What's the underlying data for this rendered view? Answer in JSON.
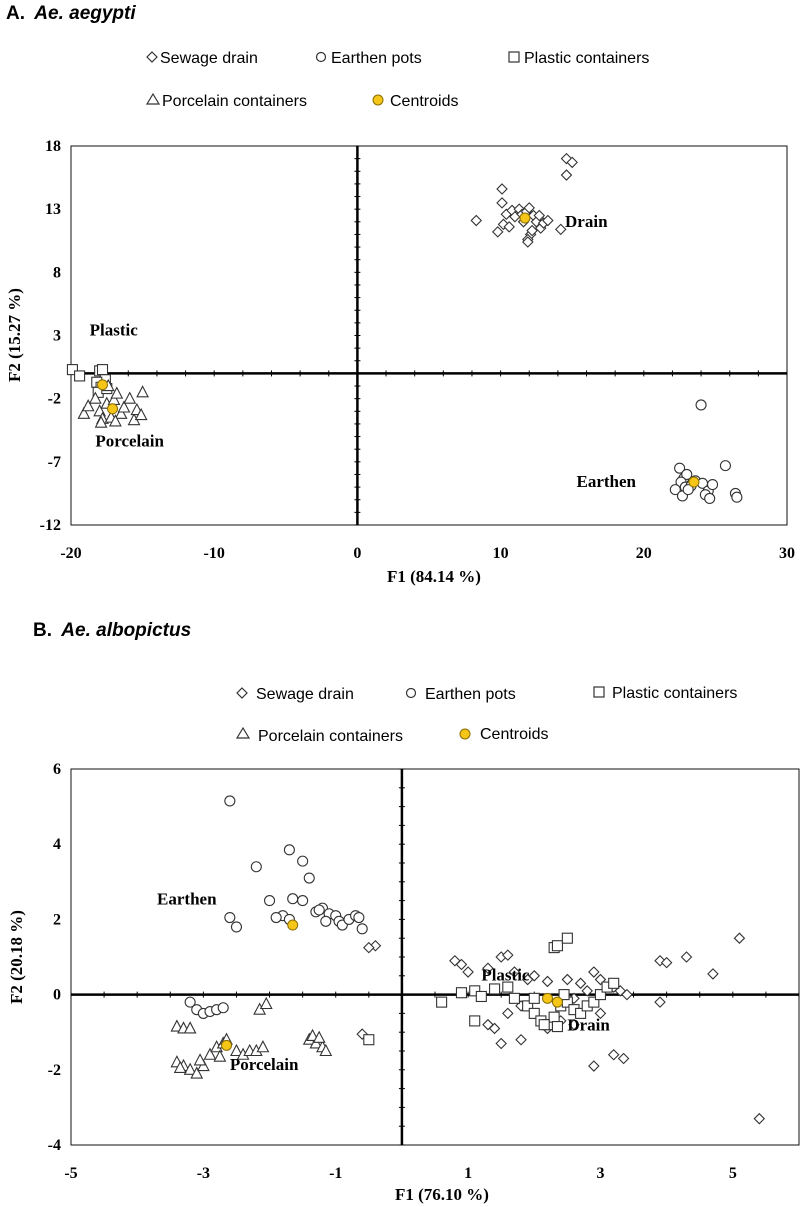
{
  "colors": {
    "marker_stroke": "#333333",
    "centroid_fill": "#F5C518",
    "centroid_stroke": "#8a6d00",
    "axis": "#000000"
  },
  "chart_data": [
    {
      "type": "scatter",
      "panel_letter": "A.",
      "species": "Ae. aegypti",
      "xlabel": "F1 (84.14 %)",
      "ylabel": "F2 (15.27 %)",
      "xlim": [
        -20,
        30
      ],
      "ylim": [
        -12,
        18
      ],
      "xticks": [
        -20,
        -10,
        0,
        10,
        20,
        30
      ],
      "xtick_labels": [
        "-20",
        "-10",
        "0",
        "10",
        "20",
        "30"
      ],
      "yticks": [
        -12,
        -7,
        -2,
        3,
        8,
        13,
        18
      ],
      "ytick_labels": [
        "-12",
        "-7",
        "-2",
        "3",
        "8",
        "13",
        "18"
      ],
      "legend": [
        {
          "marker": "diamond",
          "label": "Sewage drain"
        },
        {
          "marker": "circle",
          "label": "Earthen pots"
        },
        {
          "marker": "square",
          "label": "Plastic containers"
        },
        {
          "marker": "triangle",
          "label": "Porcelain containers"
        },
        {
          "marker": "centroid",
          "label": "Centroids"
        }
      ],
      "annotations": [
        {
          "text": "Drain",
          "x": 14.5,
          "y": 11.6
        },
        {
          "text": "Plastic",
          "x": -18.7,
          "y": 3.0
        },
        {
          "text": "Porcelain",
          "x": -18.3,
          "y": -5.8
        },
        {
          "text": "Earthen",
          "x": 15.3,
          "y": -9.0
        }
      ],
      "series": [
        {
          "name": "Sewage drain",
          "marker": "diamond",
          "points": [
            [
              14.6,
              17.0
            ],
            [
              15.0,
              16.7
            ],
            [
              14.6,
              15.7
            ],
            [
              8.3,
              12.1
            ],
            [
              9.8,
              11.2
            ],
            [
              10.2,
              11.8
            ],
            [
              10.6,
              11.6
            ],
            [
              10.1,
              13.5
            ],
            [
              10.4,
              12.6
            ],
            [
              10.8,
              12.9
            ],
            [
              11.0,
              12.4
            ],
            [
              11.3,
              13.0
            ],
            [
              11.5,
              12.6
            ],
            [
              11.8,
              12.8
            ],
            [
              12.0,
              13.1
            ],
            [
              12.3,
              12.5
            ],
            [
              12.5,
              12.0
            ],
            [
              12.8,
              11.5
            ],
            [
              12.1,
              11.0
            ],
            [
              11.9,
              10.6
            ],
            [
              12.2,
              11.3
            ],
            [
              12.7,
              12.5
            ],
            [
              13.0,
              11.9
            ],
            [
              13.3,
              12.1
            ],
            [
              11.6,
              12.0
            ],
            [
              10.1,
              14.6
            ],
            [
              14.2,
              11.4
            ],
            [
              11.9,
              10.4
            ]
          ]
        },
        {
          "name": "Earthen pots",
          "marker": "circle",
          "points": [
            [
              24.0,
              -2.5
            ],
            [
              22.5,
              -7.5
            ],
            [
              22.8,
              -8.3
            ],
            [
              23.0,
              -8.0
            ],
            [
              22.6,
              -8.6
            ],
            [
              22.2,
              -9.2
            ],
            [
              22.9,
              -9.0
            ],
            [
              23.3,
              -8.9
            ],
            [
              23.6,
              -8.5
            ],
            [
              24.1,
              -8.7
            ],
            [
              24.5,
              -9.3
            ],
            [
              24.3,
              -9.6
            ],
            [
              24.8,
              -8.8
            ],
            [
              24.6,
              -9.9
            ],
            [
              25.7,
              -7.3
            ],
            [
              26.4,
              -9.5
            ],
            [
              26.5,
              -9.8
            ],
            [
              22.7,
              -9.7
            ],
            [
              23.1,
              -9.2
            ]
          ]
        },
        {
          "name": "Plastic containers",
          "marker": "square",
          "points": [
            [
              -19.9,
              0.3
            ],
            [
              -19.4,
              -0.2
            ],
            [
              -18.0,
              0.2
            ],
            [
              -17.8,
              0.3
            ],
            [
              -17.6,
              -0.5
            ],
            [
              -18.2,
              -0.7
            ],
            [
              -17.9,
              -1.1
            ],
            [
              -18.1,
              -1.5
            ],
            [
              -17.5,
              -1.2
            ]
          ]
        },
        {
          "name": "Porcelain containers",
          "marker": "triangle",
          "points": [
            [
              -19.1,
              -3.2
            ],
            [
              -18.8,
              -2.6
            ],
            [
              -18.3,
              -2.0
            ],
            [
              -18.0,
              -3.0
            ],
            [
              -17.8,
              -3.6
            ],
            [
              -17.5,
              -2.4
            ],
            [
              -17.2,
              -3.5
            ],
            [
              -17.0,
              -2.1
            ],
            [
              -16.8,
              -1.6
            ],
            [
              -16.5,
              -3.2
            ],
            [
              -16.3,
              -2.7
            ],
            [
              -15.9,
              -2.0
            ],
            [
              -15.6,
              -3.7
            ],
            [
              -15.4,
              -2.9
            ],
            [
              -15.1,
              -3.3
            ],
            [
              -15.0,
              -1.5
            ],
            [
              -17.9,
              -3.9
            ],
            [
              -17.4,
              -1.0
            ],
            [
              -16.9,
              -3.8
            ]
          ]
        },
        {
          "name": "Centroids",
          "marker": "centroid",
          "points": [
            [
              11.7,
              12.3
            ],
            [
              23.5,
              -8.6
            ],
            [
              -17.8,
              -0.9
            ],
            [
              -17.1,
              -2.8
            ]
          ]
        }
      ]
    },
    {
      "type": "scatter",
      "panel_letter": "B.",
      "species": "Ae. albopictus",
      "xlabel": "F1 (76.10 %)",
      "ylabel": "F2 (20.18 %)",
      "xlim": [
        -5,
        6
      ],
      "ylim": [
        -4,
        6
      ],
      "xticks": [
        -5,
        -3,
        -1,
        1,
        3,
        5
      ],
      "xtick_labels": [
        "-5",
        "-3",
        "-1",
        "1",
        "3",
        "5"
      ],
      "yticks": [
        -4,
        -2,
        0,
        2,
        4,
        6
      ],
      "ytick_labels": [
        "-4",
        "-2",
        "0",
        "2",
        "4",
        "6"
      ],
      "legend": [
        {
          "marker": "diamond",
          "label": "Sewage drain"
        },
        {
          "marker": "circle",
          "label": "Earthen pots"
        },
        {
          "marker": "square",
          "label": "Plastic containers"
        },
        {
          "marker": "triangle",
          "label": "Porcelain containers"
        },
        {
          "marker": "centroid",
          "label": "Centroids"
        }
      ],
      "annotations": [
        {
          "text": "Earthen",
          "x": -3.7,
          "y": 2.4
        },
        {
          "text": "Plastic",
          "x": 1.2,
          "y": 0.38
        },
        {
          "text": "Drain",
          "x": 2.5,
          "y": -0.95
        },
        {
          "text": "Porcelain",
          "x": -2.6,
          "y": -2.0
        }
      ],
      "series": [
        {
          "name": "Sewage drain",
          "marker": "diamond",
          "points": [
            [
              0.8,
              0.9
            ],
            [
              0.9,
              0.8
            ],
            [
              1.0,
              0.6
            ],
            [
              1.3,
              0.7
            ],
            [
              1.5,
              1.0
            ],
            [
              1.6,
              1.05
            ],
            [
              1.7,
              0.6
            ],
            [
              1.9,
              0.4
            ],
            [
              2.0,
              0.5
            ],
            [
              2.2,
              0.35
            ],
            [
              2.5,
              0.4
            ],
            [
              2.7,
              0.3
            ],
            [
              2.9,
              0.6
            ],
            [
              3.0,
              0.4
            ],
            [
              3.2,
              0.2
            ],
            [
              3.3,
              0.1
            ],
            [
              3.4,
              0.0
            ],
            [
              2.8,
              0.1
            ],
            [
              2.6,
              -0.1
            ],
            [
              1.8,
              -0.3
            ],
            [
              1.6,
              -0.5
            ],
            [
              1.4,
              -0.9
            ],
            [
              1.3,
              -0.8
            ],
            [
              1.5,
              -1.3
            ],
            [
              1.8,
              -1.2
            ],
            [
              2.2,
              -0.9
            ],
            [
              2.4,
              -0.7
            ],
            [
              2.6,
              -0.8
            ],
            [
              3.0,
              -0.5
            ],
            [
              2.9,
              -1.9
            ],
            [
              3.2,
              -1.6
            ],
            [
              3.35,
              -1.7
            ],
            [
              3.9,
              0.9
            ],
            [
              4.0,
              0.85
            ],
            [
              4.3,
              1.0
            ],
            [
              4.7,
              0.55
            ],
            [
              5.1,
              1.5
            ],
            [
              3.9,
              -0.2
            ],
            [
              5.4,
              -3.3
            ],
            [
              -0.4,
              1.3
            ],
            [
              -0.5,
              1.25
            ],
            [
              -0.6,
              -1.05
            ]
          ]
        },
        {
          "name": "Earthen pots",
          "marker": "circle",
          "points": [
            [
              -2.6,
              5.15
            ],
            [
              -2.2,
              3.4
            ],
            [
              -1.7,
              3.85
            ],
            [
              -1.5,
              3.55
            ],
            [
              -1.4,
              3.1
            ],
            [
              -2.0,
              2.5
            ],
            [
              -1.65,
              2.55
            ],
            [
              -1.5,
              2.5
            ],
            [
              -1.8,
              2.1
            ],
            [
              -1.7,
              2.0
            ],
            [
              -1.9,
              2.05
            ],
            [
              -2.5,
              1.8
            ],
            [
              -2.6,
              2.05
            ],
            [
              -1.3,
              2.2
            ],
            [
              -1.2,
              2.3
            ],
            [
              -1.1,
              2.15
            ],
            [
              -1.0,
              2.1
            ],
            [
              -0.95,
              1.95
            ],
            [
              -0.9,
              1.85
            ],
            [
              -0.8,
              2.0
            ],
            [
              -0.7,
              2.1
            ],
            [
              -0.65,
              2.05
            ],
            [
              -0.6,
              1.75
            ],
            [
              -1.15,
              1.95
            ],
            [
              -1.25,
              2.25
            ],
            [
              -3.2,
              -0.2
            ],
            [
              -3.1,
              -0.4
            ],
            [
              -3.0,
              -0.5
            ],
            [
              -2.9,
              -0.45
            ],
            [
              -2.8,
              -0.4
            ],
            [
              -2.7,
              -0.35
            ]
          ]
        },
        {
          "name": "Plastic containers",
          "marker": "square",
          "points": [
            [
              0.6,
              -0.2
            ],
            [
              0.9,
              0.05
            ],
            [
              1.1,
              0.1
            ],
            [
              1.2,
              -0.05
            ],
            [
              1.4,
              0.15
            ],
            [
              1.6,
              0.2
            ],
            [
              1.7,
              -0.1
            ],
            [
              1.9,
              -0.3
            ],
            [
              2.0,
              -0.5
            ],
            [
              2.1,
              -0.7
            ],
            [
              2.2,
              -0.8
            ],
            [
              2.3,
              -0.6
            ],
            [
              2.4,
              -0.3
            ],
            [
              2.5,
              -0.2
            ],
            [
              2.6,
              -0.4
            ],
            [
              2.7,
              -0.5
            ],
            [
              2.8,
              -0.3
            ],
            [
              2.9,
              -0.2
            ],
            [
              3.0,
              0.0
            ],
            [
              3.1,
              0.2
            ],
            [
              3.2,
              0.3
            ],
            [
              2.3,
              1.25
            ],
            [
              2.35,
              1.3
            ],
            [
              2.5,
              1.5
            ],
            [
              2.15,
              -0.8
            ],
            [
              2.35,
              -0.85
            ],
            [
              1.1,
              -0.7
            ],
            [
              -0.5,
              -1.2
            ],
            [
              2.0,
              -0.1
            ],
            [
              2.45,
              0.0
            ]
          ]
        },
        {
          "name": "Porcelain containers",
          "marker": "triangle",
          "points": [
            [
              -3.4,
              -0.85
            ],
            [
              -3.3,
              -0.9
            ],
            [
              -3.2,
              -0.9
            ],
            [
              -3.4,
              -1.8
            ],
            [
              -3.3,
              -1.9
            ],
            [
              -3.2,
              -2.0
            ],
            [
              -3.1,
              -2.1
            ],
            [
              -3.0,
              -1.9
            ],
            [
              -2.9,
              -1.6
            ],
            [
              -2.8,
              -1.4
            ],
            [
              -2.7,
              -1.3
            ],
            [
              -2.65,
              -1.2
            ],
            [
              -2.5,
              -1.5
            ],
            [
              -2.4,
              -1.6
            ],
            [
              -2.3,
              -1.5
            ],
            [
              -2.2,
              -1.5
            ],
            [
              -2.1,
              -1.4
            ],
            [
              -2.15,
              -0.4
            ],
            [
              -2.05,
              -0.25
            ],
            [
              -1.4,
              -1.2
            ],
            [
              -1.3,
              -1.3
            ],
            [
              -1.2,
              -1.4
            ],
            [
              -1.15,
              -1.5
            ],
            [
              -1.35,
              -1.1
            ],
            [
              -1.25,
              -1.15
            ],
            [
              -3.35,
              -1.95
            ],
            [
              -3.05,
              -1.75
            ],
            [
              -2.75,
              -1.65
            ]
          ]
        },
        {
          "name": "Centroids",
          "marker": "centroid",
          "points": [
            [
              -1.65,
              1.85
            ],
            [
              -2.65,
              -1.35
            ],
            [
              2.2,
              -0.1
            ],
            [
              2.35,
              -0.2
            ]
          ]
        }
      ]
    }
  ]
}
